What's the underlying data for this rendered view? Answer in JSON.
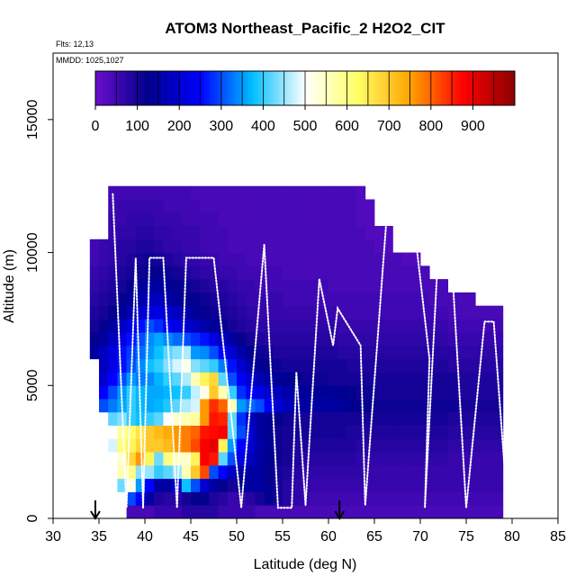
{
  "chart_data": {
    "type": "heatmap",
    "title": "ATOM3 Northeast_Pacific_2 H2O2_CIT",
    "annotations": [
      "Flts: 12,13",
      "MMDD: 1025,1027"
    ],
    "xlabel": "Latitude (deg N)",
    "ylabel": "Altitude (m)",
    "xlim": [
      30,
      85
    ],
    "ylim": [
      0,
      17500
    ],
    "x_ticks": [
      30,
      35,
      40,
      45,
      50,
      55,
      60,
      65,
      70,
      75,
      80,
      85
    ],
    "y_ticks": [
      0,
      5000,
      10000,
      15000
    ],
    "colorbar": {
      "range": [
        0,
        1000
      ],
      "tick_values": [
        0,
        100,
        200,
        300,
        400,
        500,
        600,
        700,
        800,
        900
      ],
      "position": "top",
      "colors": [
        "#6a0dcc",
        "#00008b",
        "#0000ff",
        "#00bfff",
        "#ffffff",
        "#ffff66",
        "#ffa500",
        "#ff0000",
        "#8b0000"
      ]
    },
    "grid": false,
    "bin_size": {
      "lat": 1,
      "alt": 500
    },
    "x_markers": [
      34.6,
      61.2
    ],
    "grid_data": [
      {
        "alt": 250,
        "lon0": 38,
        "vals": [
          40,
          40,
          40,
          60,
          60,
          60,
          80,
          80,
          80,
          80,
          60,
          60,
          60,
          60,
          40,
          40,
          40,
          40,
          40,
          40,
          40,
          40,
          40,
          40,
          40,
          40,
          40,
          40,
          40,
          40,
          40,
          40,
          40,
          40,
          40,
          40,
          40,
          40,
          40,
          40,
          40
        ]
      },
      {
        "alt": 750,
        "lon0": 38,
        "vals": [
          300,
          250,
          150,
          90,
          80,
          80,
          100,
          120,
          120,
          90,
          80,
          60,
          60,
          80,
          100,
          120,
          100,
          80,
          70,
          60,
          50,
          50,
          50,
          50,
          50,
          50,
          50,
          50,
          50,
          50,
          50,
          50,
          50,
          50,
          50,
          50,
          50,
          50,
          50,
          50,
          50
        ]
      },
      {
        "alt": 1250,
        "lon0": 37,
        "vals": [
          430,
          520,
          350,
          250,
          150,
          150,
          200,
          380,
          300,
          200,
          150,
          120,
          100,
          120,
          150,
          150,
          120,
          100,
          80,
          70,
          60,
          60,
          60,
          60,
          60,
          60,
          60,
          60,
          60,
          60,
          60,
          60,
          60,
          60,
          60,
          60,
          60,
          60,
          60,
          60,
          60,
          60
        ]
      },
      {
        "alt": 1750,
        "lon0": 37,
        "vals": [
          560,
          600,
          440,
          450,
          400,
          420,
          450,
          560,
          700,
          820,
          300,
          250,
          180,
          150,
          150,
          150,
          120,
          100,
          90,
          80,
          70,
          70,
          70,
          70,
          70,
          70,
          70,
          60,
          60,
          60,
          60,
          60,
          60,
          60,
          60,
          60,
          60,
          60,
          60,
          60,
          60,
          60
        ]
      },
      {
        "alt": 2250,
        "lon0": 37,
        "vals": [
          540,
          680,
          760,
          640,
          430,
          600,
          560,
          540,
          640,
          880,
          860,
          420,
          300,
          220,
          180,
          150,
          130,
          110,
          100,
          90,
          80,
          80,
          80,
          80,
          80,
          80,
          70,
          70,
          70,
          70,
          70,
          70,
          70,
          70,
          70,
          70,
          60,
          60,
          60,
          60,
          60,
          60
        ]
      },
      {
        "alt": 2750,
        "lon0": 36,
        "vals": [
          480,
          610,
          640,
          680,
          700,
          700,
          720,
          760,
          780,
          820,
          880,
          900,
          640,
          350,
          250,
          200,
          160,
          130,
          110,
          100,
          90,
          90,
          90,
          90,
          90,
          90,
          90,
          80,
          80,
          80,
          80,
          80,
          80,
          80,
          80,
          80,
          80,
          70,
          70,
          70,
          70,
          70,
          70
        ]
      },
      {
        "alt": 3250,
        "lon0": 36,
        "vals": [
          500,
          580,
          620,
          660,
          700,
          720,
          740,
          760,
          780,
          800,
          860,
          870,
          880,
          420,
          300,
          200,
          150,
          130,
          110,
          100,
          100,
          100,
          100,
          100,
          100,
          100,
          90,
          90,
          90,
          90,
          90,
          90,
          90,
          90,
          90,
          90,
          90,
          80,
          80,
          80,
          80,
          80,
          80
        ]
      },
      {
        "alt": 3750,
        "lon0": 36,
        "vals": [
          420,
          440,
          400,
          380,
          400,
          420,
          500,
          540,
          560,
          580,
          760,
          860,
          850,
          420,
          280,
          180,
          150,
          130,
          120,
          110,
          100,
          100,
          100,
          100,
          100,
          100,
          100,
          100,
          100,
          100,
          100,
          100,
          100,
          100,
          100,
          100,
          100,
          90,
          90,
          90,
          90,
          90,
          90
        ]
      },
      {
        "alt": 4250,
        "lon0": 35,
        "vals": [
          300,
          330,
          360,
          400,
          370,
          360,
          370,
          390,
          420,
          460,
          480,
          760,
          840,
          800,
          560,
          350,
          320,
          300,
          240,
          200,
          180,
          160,
          150,
          150,
          150,
          150,
          140,
          130,
          120,
          120,
          110,
          110,
          110,
          110,
          110,
          110,
          110,
          110,
          110,
          100,
          100,
          100,
          100,
          100
        ]
      },
      {
        "alt": 4750,
        "lon0": 35,
        "vals": [
          250,
          300,
          350,
          400,
          370,
          360,
          360,
          370,
          380,
          400,
          470,
          520,
          700,
          560,
          400,
          280,
          250,
          220,
          200,
          180,
          160,
          150,
          140,
          140,
          140,
          140,
          130,
          120,
          110,
          110,
          100,
          100,
          100,
          100,
          100,
          100,
          100,
          100,
          100,
          90,
          90,
          90,
          90,
          90
        ]
      },
      {
        "alt": 5250,
        "lon0": 35,
        "vals": [
          200,
          250,
          300,
          350,
          330,
          340,
          370,
          400,
          420,
          460,
          560,
          640,
          680,
          420,
          300,
          240,
          200,
          170,
          150,
          140,
          130,
          120,
          110,
          110,
          110,
          100,
          100,
          100,
          100,
          100,
          100,
          100,
          100,
          100,
          100,
          100,
          100,
          100,
          100,
          90,
          90,
          90,
          90,
          90
        ]
      },
      {
        "alt": 5750,
        "lon0": 35,
        "vals": [
          180,
          220,
          260,
          300,
          340,
          380,
          400,
          440,
          480,
          520,
          440,
          420,
          400,
          330,
          260,
          200,
          160,
          140,
          120,
          110,
          100,
          100,
          100,
          100,
          100,
          100,
          100,
          90,
          90,
          90,
          90,
          90,
          90,
          90,
          90,
          90,
          90,
          90,
          80,
          80,
          80,
          80,
          80,
          80
        ]
      },
      {
        "alt": 6250,
        "lon0": 34,
        "vals": [
          150,
          180,
          220,
          260,
          290,
          320,
          350,
          380,
          420,
          440,
          460,
          350,
          340,
          300,
          250,
          200,
          160,
          130,
          110,
          100,
          90,
          90,
          90,
          90,
          90,
          90,
          90,
          80,
          80,
          80,
          80,
          80,
          80,
          80,
          80,
          80,
          80,
          80,
          80,
          80,
          70,
          70,
          70,
          70,
          70
        ]
      },
      {
        "alt": 6750,
        "lon0": 34,
        "vals": [
          120,
          150,
          180,
          220,
          260,
          300,
          340,
          360,
          340,
          320,
          300,
          280,
          260,
          220,
          180,
          150,
          120,
          100,
          90,
          80,
          80,
          80,
          80,
          80,
          80,
          80,
          80,
          70,
          70,
          70,
          70,
          70,
          70,
          70,
          70,
          70,
          70,
          70,
          70,
          60,
          60,
          60,
          60,
          60,
          60
        ]
      },
      {
        "alt": 7250,
        "lon0": 34,
        "vals": [
          100,
          120,
          150,
          180,
          220,
          260,
          300,
          280,
          240,
          220,
          200,
          180,
          160,
          140,
          120,
          100,
          90,
          80,
          70,
          70,
          70,
          70,
          70,
          70,
          70,
          70,
          70,
          60,
          60,
          60,
          60,
          60,
          60,
          60,
          60,
          60,
          60,
          60,
          60,
          50,
          50,
          50,
          50,
          50,
          50
        ]
      },
      {
        "alt": 7750,
        "lon0": 34,
        "vals": [
          90,
          100,
          120,
          140,
          170,
          200,
          220,
          220,
          200,
          180,
          160,
          140,
          120,
          110,
          100,
          90,
          80,
          70,
          60,
          60,
          60,
          60,
          60,
          60,
          60,
          60,
          60,
          50,
          50,
          50,
          50,
          50,
          50,
          50,
          50,
          50,
          50,
          50,
          50,
          40,
          40,
          40,
          40,
          40,
          40
        ]
      },
      {
        "alt": 8250,
        "lon0": 34,
        "vals": [
          80,
          90,
          100,
          120,
          140,
          160,
          180,
          180,
          160,
          140,
          130,
          120,
          110,
          100,
          90,
          80,
          70,
          60,
          60,
          60,
          60,
          50,
          50,
          50,
          50,
          50,
          50,
          50,
          50,
          50,
          50,
          50,
          50,
          50,
          50,
          50,
          50,
          40,
          40,
          40,
          40,
          40
        ]
      },
      {
        "alt": 8750,
        "lon0": 34,
        "vals": [
          70,
          80,
          90,
          100,
          120,
          140,
          150,
          150,
          140,
          120,
          110,
          100,
          90,
          80,
          80,
          70,
          60,
          60,
          50,
          50,
          50,
          50,
          50,
          50,
          50,
          50,
          40,
          40,
          40,
          40,
          40,
          40,
          40,
          40,
          40,
          40,
          40,
          40,
          40
        ]
      },
      {
        "alt": 9250,
        "lon0": 34,
        "vals": [
          60,
          70,
          80,
          90,
          100,
          110,
          120,
          120,
          110,
          100,
          90,
          80,
          70,
          70,
          60,
          60,
          50,
          50,
          50,
          50,
          50,
          40,
          40,
          40,
          40,
          40,
          40,
          40,
          40,
          40,
          40,
          40,
          40,
          40,
          40,
          40,
          40
        ]
      },
      {
        "alt": 9750,
        "lon0": 34,
        "vals": [
          50,
          60,
          70,
          80,
          90,
          100,
          110,
          100,
          90,
          80,
          70,
          70,
          60,
          60,
          50,
          50,
          50,
          40,
          40,
          40,
          40,
          40,
          40,
          40,
          40,
          40,
          40,
          40,
          40,
          40,
          40,
          40,
          40,
          40,
          30,
          30
        ]
      },
      {
        "alt": 10250,
        "lon0": 34,
        "vals": [
          50,
          60,
          70,
          80,
          80,
          90,
          90,
          80,
          70,
          70,
          60,
          60,
          50,
          50,
          50,
          40,
          40,
          40,
          40,
          40,
          40,
          40,
          40,
          40,
          40,
          40,
          40,
          40,
          40,
          40,
          40,
          30,
          30
        ]
      },
      {
        "alt": 10750,
        "lon0": 36,
        "vals": [
          60,
          70,
          70,
          80,
          80,
          70,
          70,
          60,
          60,
          60,
          50,
          50,
          50,
          40,
          40,
          40,
          40,
          40,
          40,
          40,
          40,
          40,
          40,
          40,
          40,
          40,
          40,
          40,
          30,
          30,
          30
        ]
      },
      {
        "alt": 11250,
        "lon0": 36,
        "vals": [
          60,
          60,
          70,
          70,
          70,
          60,
          60,
          60,
          50,
          50,
          50,
          50,
          40,
          40,
          40,
          40,
          40,
          40,
          40,
          40,
          40,
          40,
          40,
          40,
          40,
          40,
          40,
          30,
          30
        ]
      },
      {
        "alt": 11750,
        "lon0": 36,
        "vals": [
          50,
          60,
          60,
          60,
          60,
          60,
          50,
          50,
          50,
          50,
          40,
          40,
          40,
          40,
          40,
          40,
          40,
          40,
          40,
          40,
          40,
          40,
          40,
          40,
          40,
          40,
          40,
          30,
          30
        ]
      },
      {
        "alt": 12250,
        "lon0": 36,
        "vals": [
          50,
          50,
          50,
          50,
          50,
          50,
          50,
          50,
          50,
          40,
          40,
          40,
          40,
          40,
          40,
          40,
          40,
          40,
          40,
          40,
          40,
          40,
          40,
          40,
          40,
          40,
          40,
          30
        ]
      }
    ],
    "flight_track": [
      [
        36.5,
        12200
      ],
      [
        38.0,
        400
      ],
      [
        39.0,
        9800
      ],
      [
        39.8,
        400
      ],
      [
        40.5,
        9800
      ],
      [
        42.0,
        9800
      ],
      [
        43.5,
        400
      ],
      [
        44.5,
        9800
      ],
      [
        47.5,
        9800
      ],
      [
        50.5,
        400
      ],
      [
        53.0,
        10300
      ],
      [
        54.5,
        400
      ],
      [
        56.0,
        400
      ],
      [
        56.5,
        5500
      ],
      [
        57.5,
        500
      ],
      [
        59.0,
        9000
      ],
      [
        60.5,
        6500
      ],
      [
        61.0,
        7900
      ],
      [
        63.5,
        6500
      ],
      [
        64.0,
        500
      ],
      [
        66.5,
        12100
      ],
      [
        69.0,
        12000
      ],
      [
        71.0,
        6000
      ],
      [
        70.5,
        400
      ],
      [
        72.0,
        10400
      ],
      [
        73.5,
        9200
      ],
      [
        75.0,
        400
      ],
      [
        77.0,
        7400
      ],
      [
        78.0,
        7400
      ],
      [
        79.5,
        400
      ],
      [
        80.0,
        7000
      ]
    ]
  }
}
